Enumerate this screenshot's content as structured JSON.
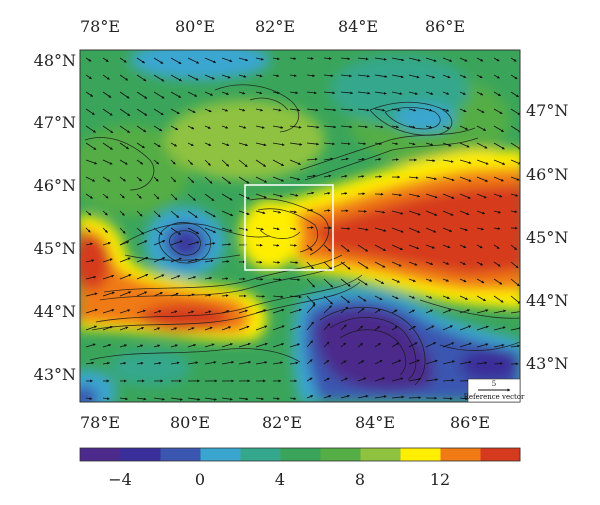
{
  "map": {
    "lon_labels": [
      "78°E",
      "80°E",
      "82°E",
      "84°E",
      "86°E"
    ],
    "lat_labels_left": [
      "48°N",
      "47°N",
      "46°N",
      "45°N",
      "44°N",
      "43°N"
    ],
    "lat_labels_right": [
      "47°N",
      "46°N",
      "45°N",
      "44°N",
      "43°N"
    ],
    "reference_vector": {
      "value": "5",
      "label": "Reference vector"
    },
    "field_colors": [
      "#4b2a8c",
      "#3a2f9a",
      "#3b56b0",
      "#3aa6d0",
      "#35a78c",
      "#3aa55a",
      "#54ad45",
      "#8fc23f",
      "#ffee00",
      "#f07a14",
      "#d63a1c"
    ],
    "highlight_box_color": "#ffffff"
  },
  "colorbar": {
    "colors": [
      "#4b2a8c",
      "#3a2f9a",
      "#3b56b0",
      "#3aa6d0",
      "#35a78c",
      "#3aa55a",
      "#54ad45",
      "#8fc23f",
      "#ffee00",
      "#f07a14",
      "#d63a1c"
    ],
    "tick_labels": [
      "−4",
      "0",
      "4",
      "8",
      "12"
    ]
  }
}
